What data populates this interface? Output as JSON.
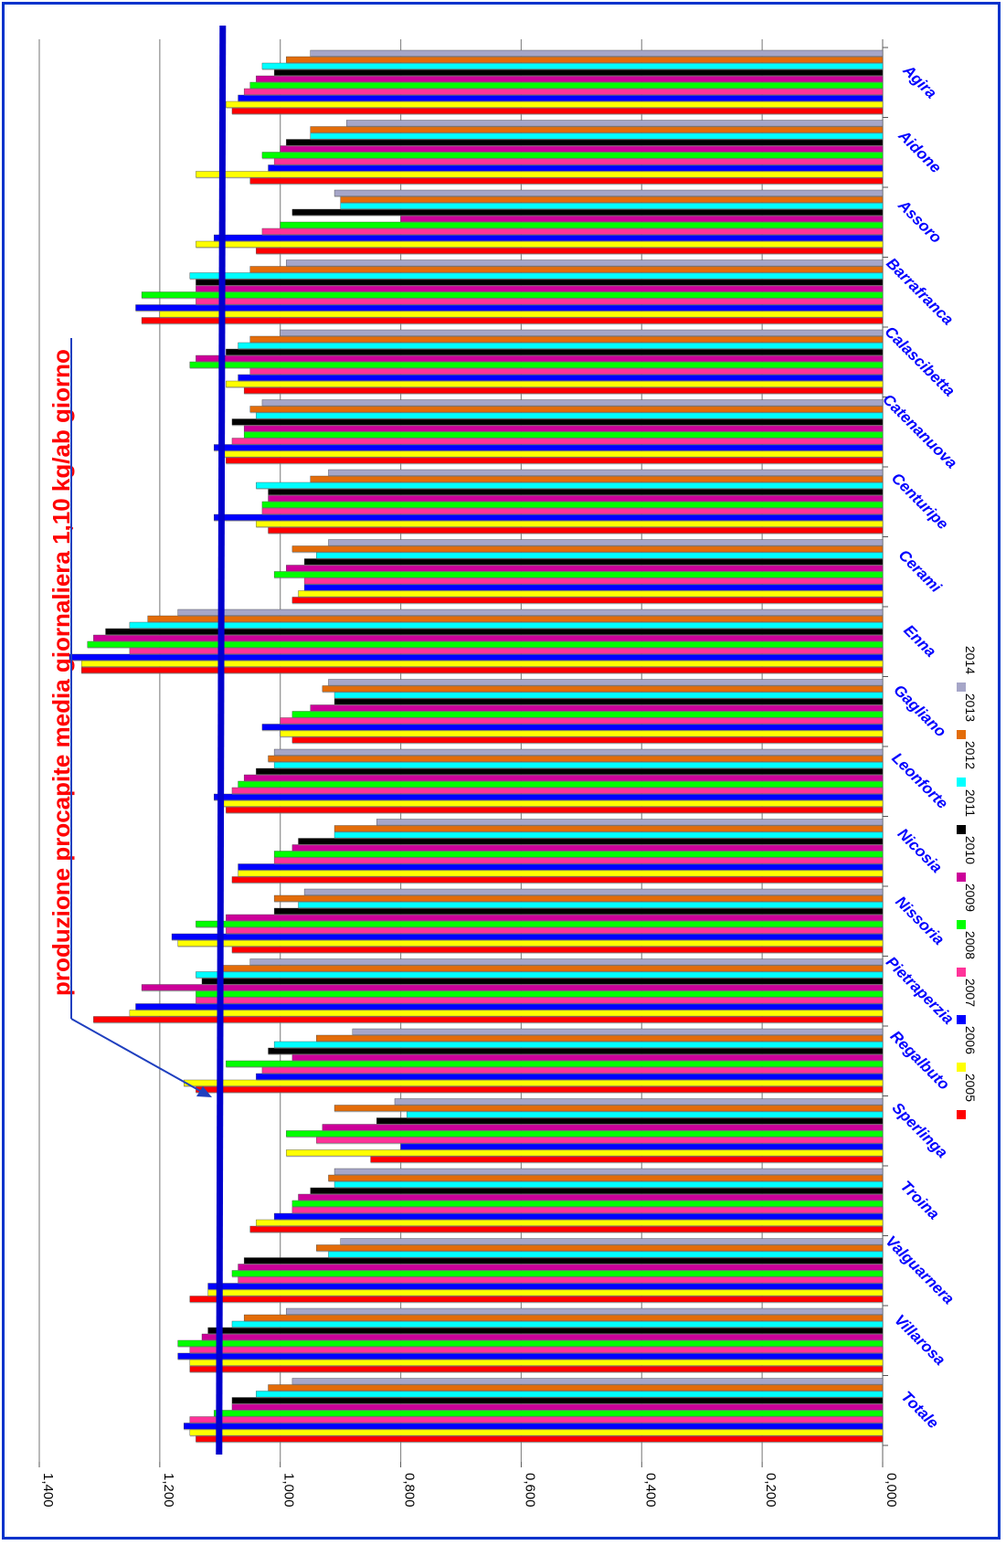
{
  "annotation": "produzione procapite media giornaliera 1,10 kg/ab giorno",
  "chart_data": {
    "type": "bar",
    "orientation": "horizontal",
    "ylim": [
      0,
      1.4
    ],
    "y_ticks": [
      "0,000",
      "0,200",
      "0,400",
      "0,600",
      "0,800",
      "1,000",
      "1,200",
      "1,400"
    ],
    "grid": true,
    "legend_position": "bottom-right",
    "reference_line": {
      "value": 1.1,
      "color": "#0000cc"
    },
    "categories": [
      "Agira",
      "Aidone",
      "Assoro",
      "Barrafranca",
      "Calascibetta",
      "Catenanuova",
      "Centuripe",
      "Cerami",
      "Enna",
      "Gagliano",
      "Leonforte",
      "Nicosia",
      "Nissoria",
      "Pietraperzia",
      "Regalbuto",
      "Sperlinga",
      "Troina",
      "Valguarnera",
      "Villarosa",
      "Totale"
    ],
    "series": [
      {
        "name": "2005",
        "color": "#ff0000",
        "values": [
          1.08,
          1.05,
          1.04,
          1.23,
          1.06,
          1.09,
          1.02,
          0.98,
          1.33,
          0.98,
          1.09,
          1.08,
          1.08,
          1.31,
          1.14,
          0.85,
          1.05,
          1.15,
          1.15,
          1.14
        ]
      },
      {
        "name": "2006",
        "color": "#ffff00",
        "values": [
          1.09,
          1.14,
          1.14,
          1.2,
          1.09,
          1.1,
          1.04,
          0.97,
          1.33,
          1.0,
          1.1,
          1.07,
          1.17,
          1.25,
          1.16,
          0.99,
          1.04,
          1.12,
          1.15,
          1.15
        ]
      },
      {
        "name": "2007",
        "color": "#0000ff",
        "values": [
          1.07,
          1.02,
          1.11,
          1.24,
          1.07,
          1.11,
          1.11,
          0.96,
          1.35,
          1.03,
          1.11,
          1.07,
          1.18,
          1.24,
          1.04,
          0.8,
          1.01,
          1.12,
          1.17,
          1.16
        ]
      },
      {
        "name": "2008",
        "color": "#ff3399",
        "values": [
          1.06,
          1.01,
          1.03,
          1.14,
          1.05,
          1.08,
          1.03,
          0.96,
          1.25,
          1.0,
          1.08,
          1.01,
          1.09,
          1.14,
          1.03,
          0.94,
          0.98,
          1.07,
          1.15,
          1.15
        ]
      },
      {
        "name": "2009",
        "color": "#00ff00",
        "values": [
          1.05,
          1.03,
          1.0,
          1.23,
          1.15,
          1.06,
          1.03,
          1.01,
          1.32,
          0.98,
          1.07,
          1.01,
          1.14,
          1.14,
          1.09,
          0.99,
          0.98,
          1.08,
          1.17,
          1.11
        ]
      },
      {
        "name": "2010",
        "color": "#cc0099",
        "values": [
          1.04,
          1.0,
          0.8,
          1.14,
          1.14,
          1.06,
          1.02,
          0.99,
          1.31,
          0.95,
          1.06,
          0.98,
          1.09,
          1.23,
          0.98,
          0.93,
          0.97,
          1.07,
          1.13,
          1.08
        ]
      },
      {
        "name": "2011",
        "color": "#000000",
        "values": [
          1.01,
          0.99,
          0.98,
          1.14,
          1.09,
          1.08,
          1.02,
          0.96,
          1.29,
          0.91,
          1.04,
          0.97,
          1.01,
          1.13,
          1.02,
          0.84,
          0.95,
          1.06,
          1.12,
          1.08
        ]
      },
      {
        "name": "2012",
        "color": "#00ffff",
        "values": [
          1.03,
          0.95,
          0.9,
          1.15,
          1.07,
          1.04,
          1.04,
          0.94,
          1.25,
          0.91,
          1.01,
          0.91,
          0.97,
          1.14,
          1.01,
          0.79,
          0.91,
          0.92,
          1.08,
          1.04
        ]
      },
      {
        "name": "2013",
        "color": "#e36c09",
        "values": [
          0.99,
          0.95,
          0.9,
          1.05,
          1.05,
          1.05,
          0.95,
          0.98,
          1.22,
          0.93,
          1.02,
          0.91,
          1.01,
          1.1,
          0.94,
          0.91,
          0.92,
          0.94,
          1.06,
          1.02
        ]
      },
      {
        "name": "2014",
        "color": "#a6a6c8",
        "values": [
          0.95,
          0.89,
          0.91,
          0.99,
          1.0,
          1.03,
          0.92,
          0.92,
          1.17,
          0.92,
          1.01,
          0.84,
          0.96,
          1.05,
          0.88,
          0.81,
          0.91,
          0.9,
          0.99,
          0.98
        ]
      }
    ]
  }
}
